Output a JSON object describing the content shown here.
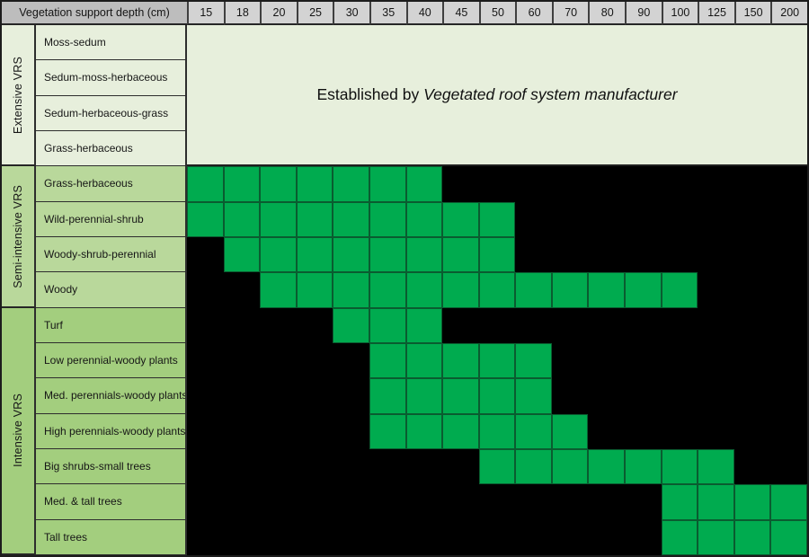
{
  "title": "Vegetation support depth (cm)",
  "note": {
    "prefix": "Established by ",
    "emphasis": "Vegetated roof system manufacturer"
  },
  "colors": {
    "supported_green": "#00AB4F",
    "cell_border_green": "#0A5C30",
    "unsupported_black": "#000000",
    "header_label_bg": "#BDBDBD",
    "header_value_bg": "#D3D3D3",
    "extensive_bg": "#E7EFDC",
    "semi_intensive_bg": "#B9D89B",
    "intensive_bg": "#A3CE7E",
    "text": "#151515"
  },
  "chart_data": {
    "type": "heatmap",
    "title": "Vegetation support depth (cm)",
    "x_categories": [
      15,
      18,
      20,
      25,
      30,
      35,
      40,
      45,
      50,
      60,
      70,
      80,
      90,
      100,
      125,
      150,
      200
    ],
    "legend": "green cell = vegetation type supported at that depth; black = not supported",
    "groups": [
      {
        "name": "Extensive VRS",
        "rows": [
          {
            "label": "Moss-sedum",
            "supported_depths": "manufacturer"
          },
          {
            "label": "Sedum-moss-herbaceous",
            "supported_depths": "manufacturer"
          },
          {
            "label": "Sedum-herbaceous-grass",
            "supported_depths": "manufacturer"
          },
          {
            "label": "Grass-herbaceous",
            "supported_depths": "manufacturer"
          }
        ],
        "note": "Established by Vegetated roof system manufacturer"
      },
      {
        "name": "Semi-intensive VRS",
        "rows": [
          {
            "label": "Grass-herbaceous",
            "supported_depths": [
              15,
              18,
              20,
              25,
              30,
              35,
              40
            ]
          },
          {
            "label": "Wild-perennial-shrub",
            "supported_depths": [
              15,
              18,
              20,
              25,
              30,
              35,
              40,
              45,
              50
            ]
          },
          {
            "label": "Woody-shrub-perennial",
            "supported_depths": [
              18,
              20,
              25,
              30,
              35,
              40,
              45,
              50
            ]
          },
          {
            "label": "Woody",
            "supported_depths": [
              20,
              25,
              30,
              35,
              40,
              45,
              50,
              60,
              70,
              80,
              90,
              100
            ]
          }
        ]
      },
      {
        "name": "Intensive VRS",
        "rows": [
          {
            "label": "Turf",
            "supported_depths": [
              30,
              35,
              40
            ]
          },
          {
            "label": "Low perennial-woody plants",
            "supported_depths": [
              35,
              40,
              45,
              50,
              60
            ]
          },
          {
            "label": "Med. perennials-woody plants",
            "supported_depths": [
              35,
              40,
              45,
              50,
              60
            ]
          },
          {
            "label": "High perennials-woody plants",
            "supported_depths": [
              35,
              40,
              45,
              50,
              60,
              70
            ]
          },
          {
            "label": "Big shrubs-small trees",
            "supported_depths": [
              50,
              60,
              70,
              80,
              90,
              100,
              125
            ]
          },
          {
            "label": "Med. & tall trees",
            "supported_depths": [
              100,
              125,
              150,
              200
            ]
          },
          {
            "label": "Tall trees",
            "supported_depths": [
              100,
              125,
              150,
              200
            ]
          }
        ]
      }
    ]
  }
}
